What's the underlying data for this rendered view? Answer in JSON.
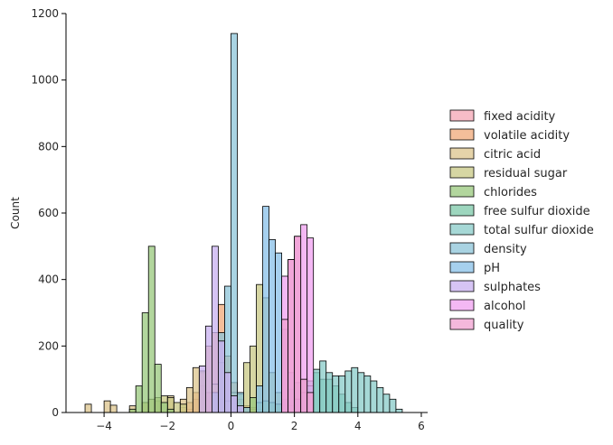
{
  "chart_data": {
    "type": "bar",
    "xlabel": "",
    "ylabel": "Count",
    "xlim": [
      -5.2,
      6.2
    ],
    "ylim": [
      0,
      1200
    ],
    "xticks": [
      "−4",
      "−2",
      "0",
      "2",
      "4",
      "6"
    ],
    "xtick_values": [
      -4,
      -2,
      0,
      2,
      4,
      6
    ],
    "yticks": [
      "0",
      "200",
      "400",
      "600",
      "800",
      "1000",
      "1200"
    ],
    "ytick_values": [
      0,
      200,
      400,
      600,
      800,
      1000,
      1200
    ],
    "bin_width": 0.2,
    "grid": false,
    "legend_position": "right",
    "series": [
      {
        "name": "fixed acidity",
        "color": "#f4a6b4",
        "bars": [
          [
            -1.4,
            10
          ],
          [
            -1.2,
            40
          ],
          [
            -1.0,
            80
          ],
          [
            -0.8,
            60
          ],
          [
            -0.6,
            50
          ],
          [
            -0.4,
            40
          ],
          [
            -0.2,
            30
          ],
          [
            0.0,
            25
          ],
          [
            0.2,
            20
          ],
          [
            0.4,
            15
          ],
          [
            0.6,
            15
          ],
          [
            0.8,
            10
          ]
        ]
      },
      {
        "name": "volatile acidity",
        "color": "#f0a878",
        "bars": [
          [
            -1.6,
            15
          ],
          [
            -1.4,
            30
          ],
          [
            -1.2,
            60
          ],
          [
            -1.0,
            120
          ],
          [
            -0.8,
            200
          ],
          [
            -0.6,
            240
          ],
          [
            -0.4,
            325
          ],
          [
            -0.2,
            170
          ],
          [
            0.0,
            90
          ],
          [
            0.2,
            40
          ],
          [
            0.4,
            20
          ],
          [
            0.6,
            10
          ]
        ]
      },
      {
        "name": "citric acid",
        "color": "#dcc48c",
        "bars": [
          [
            -4.6,
            25
          ],
          [
            -4.0,
            35
          ],
          [
            -3.8,
            22
          ],
          [
            -3.2,
            20
          ],
          [
            -2.8,
            30
          ],
          [
            -2.4,
            35
          ],
          [
            -2.0,
            50
          ],
          [
            -1.6,
            40
          ],
          [
            -1.4,
            75
          ],
          [
            -1.2,
            135
          ],
          [
            -1.0,
            125
          ],
          [
            -0.6,
            85
          ],
          [
            -0.4,
            150
          ],
          [
            -0.2,
            35
          ],
          [
            0.0,
            60
          ],
          [
            0.4,
            15
          ],
          [
            0.8,
            10
          ]
        ]
      },
      {
        "name": "residual sugar",
        "color": "#c8c884",
        "bars": [
          [
            -2.8,
            30
          ],
          [
            -2.6,
            40
          ],
          [
            -2.4,
            45
          ],
          [
            -2.2,
            50
          ],
          [
            -2.0,
            45
          ],
          [
            -1.8,
            30
          ],
          [
            -1.6,
            25
          ],
          [
            0.2,
            55
          ],
          [
            0.4,
            150
          ],
          [
            0.6,
            200
          ],
          [
            0.8,
            385
          ],
          [
            1.0,
            345
          ],
          [
            1.2,
            120
          ],
          [
            1.4,
            60
          ],
          [
            1.6,
            40
          ],
          [
            1.8,
            20
          ],
          [
            2.0,
            10
          ]
        ]
      },
      {
        "name": "chlorides",
        "color": "#98c87c",
        "bars": [
          [
            -3.2,
            10
          ],
          [
            -3.0,
            80
          ],
          [
            -2.8,
            300
          ],
          [
            -2.6,
            500
          ],
          [
            -2.4,
            145
          ],
          [
            -2.2,
            30
          ],
          [
            -2.0,
            10
          ],
          [
            0.6,
            45
          ],
          [
            0.8,
            30
          ],
          [
            1.0,
            35
          ],
          [
            1.2,
            30
          ],
          [
            1.4,
            25
          ],
          [
            1.6,
            20
          ]
        ]
      },
      {
        "name": "free sulfur dioxide",
        "color": "#7cc8a8",
        "bars": [
          [
            1.6,
            40
          ],
          [
            1.8,
            70
          ],
          [
            2.0,
            90
          ],
          [
            2.2,
            100
          ],
          [
            2.4,
            95
          ],
          [
            2.6,
            120
          ],
          [
            2.8,
            100
          ],
          [
            3.0,
            100
          ],
          [
            3.2,
            80
          ],
          [
            3.4,
            55
          ],
          [
            3.6,
            30
          ],
          [
            3.8,
            15
          ]
        ]
      },
      {
        "name": "total sulfur dioxide",
        "color": "#88cbc8",
        "bars": [
          [
            1.8,
            20
          ],
          [
            2.0,
            40
          ],
          [
            2.2,
            60
          ],
          [
            2.4,
            80
          ],
          [
            2.6,
            130
          ],
          [
            2.8,
            155
          ],
          [
            3.0,
            120
          ],
          [
            3.2,
            110
          ],
          [
            3.4,
            110
          ],
          [
            3.6,
            125
          ],
          [
            3.8,
            135
          ],
          [
            4.0,
            120
          ],
          [
            4.2,
            110
          ],
          [
            4.4,
            95
          ],
          [
            4.6,
            75
          ],
          [
            4.8,
            55
          ],
          [
            5.0,
            40
          ],
          [
            5.2,
            10
          ]
        ]
      },
      {
        "name": "density",
        "color": "#8cc4d8",
        "bars": [
          [
            -0.6,
            60
          ],
          [
            -0.4,
            240
          ],
          [
            -0.2,
            380
          ],
          [
            0.0,
            1140
          ],
          [
            0.2,
            60
          ],
          [
            0.4,
            15
          ]
        ]
      },
      {
        "name": "pH",
        "color": "#88c0e8",
        "bars": [
          [
            0.8,
            80
          ],
          [
            1.0,
            620
          ],
          [
            1.2,
            520
          ],
          [
            1.4,
            480
          ],
          [
            1.6,
            250
          ],
          [
            1.8,
            120
          ],
          [
            2.0,
            40
          ]
        ]
      },
      {
        "name": "sulphates",
        "color": "#c8b0f0",
        "bars": [
          [
            -1.0,
            140
          ],
          [
            -0.8,
            260
          ],
          [
            -0.6,
            500
          ],
          [
            -0.4,
            215
          ],
          [
            -0.2,
            120
          ],
          [
            0.0,
            50
          ],
          [
            0.2,
            20
          ]
        ]
      },
      {
        "name": "alcohol",
        "color": "#f0a0f0",
        "bars": [
          [
            1.6,
            410
          ],
          [
            1.8,
            460
          ],
          [
            2.0,
            530
          ],
          [
            2.2,
            565
          ],
          [
            2.4,
            525
          ]
        ]
      },
      {
        "name": "quality",
        "color": "#f0a0d0",
        "bars": [
          [
            1.6,
            280
          ],
          [
            1.8,
            460
          ],
          [
            2.0,
            530
          ],
          [
            2.2,
            100
          ],
          [
            2.4,
            60
          ]
        ]
      }
    ]
  }
}
